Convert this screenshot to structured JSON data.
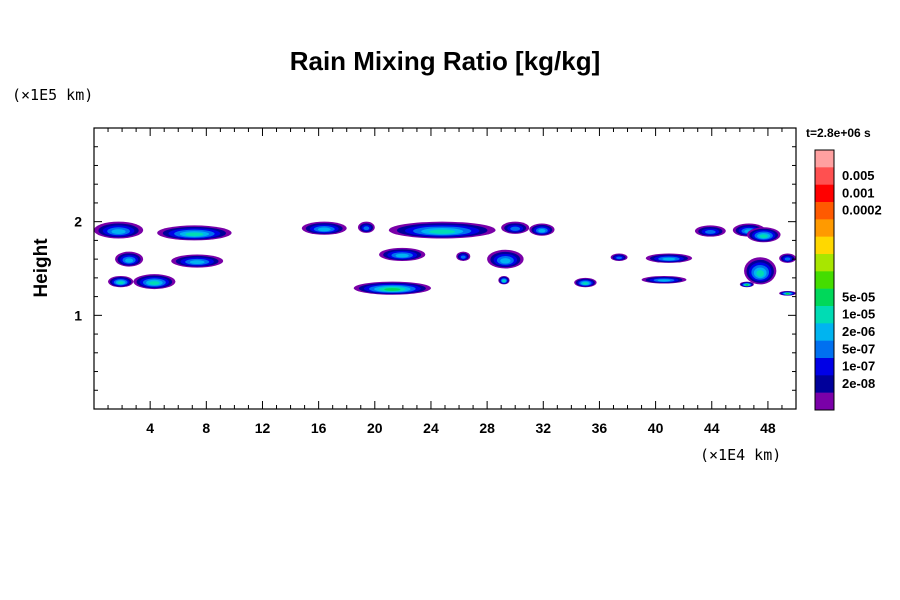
{
  "chart_data": {
    "type": "heatmap",
    "title": "Rain Mixing Ratio [kg/kg]",
    "ylabel": "Height",
    "x_unit": "(×1E4 km)",
    "y_unit": "(×1E5 km)",
    "timestamp": "t=2.8e+06 s",
    "xlim": [
      0,
      50
    ],
    "ylim": [
      0,
      3
    ],
    "x_ticks": [
      4,
      8,
      12,
      16,
      20,
      24,
      28,
      32,
      36,
      40,
      44,
      48
    ],
    "y_ticks": [
      1,
      2
    ],
    "colorbar": {
      "labels": [
        "0.005",
        "0.001",
        "0.0002",
        "5e-05",
        "1e-05",
        "2e-06",
        "5e-07",
        "1e-07",
        "2e-08"
      ],
      "colors": [
        "#ffa0a0",
        "#ff5050",
        "#ff0000",
        "#ff5a00",
        "#ff9a00",
        "#ffd800",
        "#a8e600",
        "#44dd00",
        "#00d85a",
        "#00dcb4",
        "#00b4f0",
        "#0070f0",
        "#0000e6",
        "#00009a",
        "#7a00a8"
      ]
    },
    "regions": [
      {
        "x": [
          0.0,
          3.5
        ],
        "y": [
          1.82,
          2.0
        ],
        "level": 10
      },
      {
        "x": [
          4.5,
          9.8
        ],
        "y": [
          1.8,
          1.96
        ],
        "level": 9
      },
      {
        "x": [
          1.5,
          3.5
        ],
        "y": [
          1.52,
          1.68
        ],
        "level": 10
      },
      {
        "x": [
          5.5,
          9.2
        ],
        "y": [
          1.51,
          1.65
        ],
        "level": 10
      },
      {
        "x": [
          1.0,
          2.8
        ],
        "y": [
          1.3,
          1.42
        ],
        "level": 9
      },
      {
        "x": [
          2.8,
          5.8
        ],
        "y": [
          1.28,
          1.44
        ],
        "level": 9
      },
      {
        "x": [
          14.8,
          18.0
        ],
        "y": [
          1.86,
          2.0
        ],
        "level": 10
      },
      {
        "x": [
          18.8,
          20.0
        ],
        "y": [
          1.88,
          2.0
        ],
        "level": 11
      },
      {
        "x": [
          21.0,
          28.6
        ],
        "y": [
          1.82,
          2.0
        ],
        "level": 9
      },
      {
        "x": [
          29.0,
          31.0
        ],
        "y": [
          1.87,
          2.0
        ],
        "level": 11
      },
      {
        "x": [
          31.0,
          32.8
        ],
        "y": [
          1.85,
          1.98
        ],
        "level": 10
      },
      {
        "x": [
          18.5,
          24.0
        ],
        "y": [
          1.22,
          1.36
        ],
        "level": 8
      },
      {
        "x": [
          20.3,
          23.6
        ],
        "y": [
          1.58,
          1.72
        ],
        "level": 10
      },
      {
        "x": [
          25.8,
          26.8
        ],
        "y": [
          1.58,
          1.68
        ],
        "level": 11
      },
      {
        "x": [
          28.0,
          30.6
        ],
        "y": [
          1.5,
          1.7
        ],
        "level": 10
      },
      {
        "x": [
          28.8,
          29.6
        ],
        "y": [
          1.33,
          1.42
        ],
        "level": 9
      },
      {
        "x": [
          34.2,
          35.8
        ],
        "y": [
          1.3,
          1.4
        ],
        "level": 9
      },
      {
        "x": [
          36.8,
          38.0
        ],
        "y": [
          1.58,
          1.66
        ],
        "level": 11
      },
      {
        "x": [
          39.3,
          42.6
        ],
        "y": [
          1.56,
          1.66
        ],
        "level": 10
      },
      {
        "x": [
          39.0,
          42.2
        ],
        "y": [
          1.34,
          1.42
        ],
        "level": 10
      },
      {
        "x": [
          42.8,
          45.0
        ],
        "y": [
          1.84,
          1.96
        ],
        "level": 11
      },
      {
        "x": [
          45.5,
          47.8
        ],
        "y": [
          1.84,
          1.98
        ],
        "level": 10
      },
      {
        "x": [
          46.5,
          48.9
        ],
        "y": [
          1.78,
          1.94
        ],
        "level": 9
      },
      {
        "x": [
          46.3,
          48.6
        ],
        "y": [
          1.33,
          1.62
        ],
        "level": 9
      },
      {
        "x": [
          48.8,
          50.0
        ],
        "y": [
          1.56,
          1.66
        ],
        "level": 11
      },
      {
        "x": [
          48.8,
          50.0
        ],
        "y": [
          1.21,
          1.26
        ],
        "level": 8
      },
      {
        "x": [
          46.0,
          47.0
        ],
        "y": [
          1.3,
          1.36
        ],
        "level": 8
      }
    ]
  }
}
